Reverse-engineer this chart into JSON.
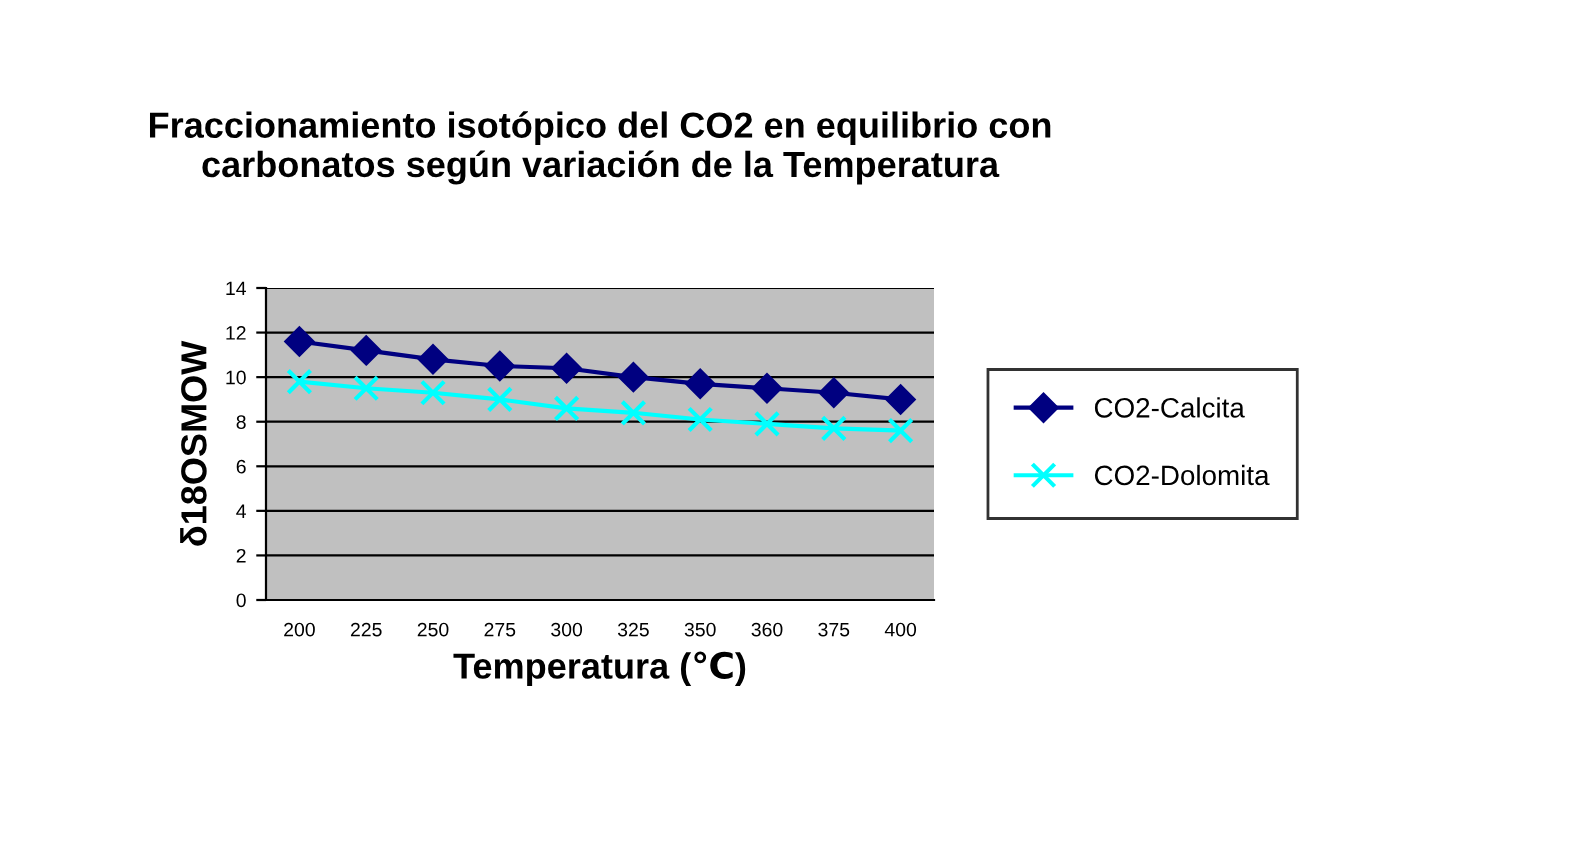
{
  "chart_data": {
    "type": "line",
    "title": "Fraccionamiento isotópico del CO2 en equilibrio con\ncarbonatos según variación de la Temperatura",
    "xlabel": "Temperatura (℃)",
    "ylabel": "δ18OSMOW",
    "categories": [
      "200",
      "225",
      "250",
      "275",
      "300",
      "325",
      "350",
      "360",
      "375",
      "400"
    ],
    "series": [
      {
        "name": "CO2-Calcita",
        "color": "#000080",
        "marker": "diamond",
        "values": [
          11.6,
          11.2,
          10.8,
          10.5,
          10.4,
          10.0,
          9.7,
          9.5,
          9.3,
          9.0
        ]
      },
      {
        "name": "CO2-Dolomita",
        "color": "#00ffff",
        "marker": "cross",
        "values": [
          9.8,
          9.5,
          9.3,
          9.0,
          8.6,
          8.4,
          8.1,
          7.9,
          7.7,
          7.6
        ]
      }
    ],
    "ylim": [
      0,
      14
    ],
    "yticks": [
      0,
      2,
      4,
      6,
      8,
      10,
      12,
      14
    ],
    "grid": "y",
    "legend": "right",
    "line_style": "solid"
  }
}
